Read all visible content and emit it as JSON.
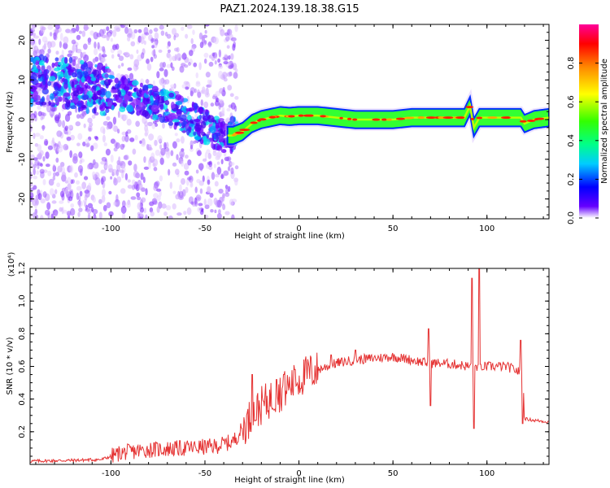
{
  "title": "PAZ1.2024.139.18.38.G15",
  "chart_data": [
    {
      "type": "heatmap",
      "xlabel": "Height of straight line (km)",
      "ylabel": "Frequency (Hz)",
      "xlim": [
        -143,
        133
      ],
      "ylim": [
        -25,
        24
      ],
      "xticks": [
        -100,
        -50,
        0,
        50,
        100
      ],
      "yticks": [
        -20,
        -10,
        0,
        10,
        20
      ],
      "colorbar": {
        "label": "Normalized spectral amplitude",
        "range": [
          0,
          1
        ],
        "ticks": [
          0.0,
          0.2,
          0.4,
          0.6,
          0.8
        ]
      },
      "ridge": {
        "x": [
          -143,
          -120,
          -100,
          -80,
          -70,
          -60,
          -50,
          -40,
          -35,
          -30,
          -25,
          -20,
          -15,
          -10,
          -5,
          0,
          10,
          20,
          30,
          40,
          50,
          60,
          70,
          80,
          88,
          91,
          93,
          96,
          100,
          110,
          115,
          118,
          120,
          125,
          133
        ],
        "y": [
          10,
          9,
          7,
          5,
          3,
          1,
          -2,
          -4,
          -4,
          -3,
          -1,
          0,
          0.5,
          1,
          0.8,
          1,
          1,
          0.5,
          0,
          0,
          0,
          0.5,
          0.5,
          0.5,
          0.5,
          3.5,
          -2,
          0.5,
          0.5,
          0.5,
          0.5,
          0.5,
          -1,
          0,
          0.5
        ]
      }
    },
    {
      "type": "line",
      "xlabel": "Height of straight line (km)",
      "ylabel": "SNR (10 * v/v)",
      "scale_label": "(x10⁴)",
      "xlim": [
        -143,
        133
      ],
      "ylim": [
        0,
        1.2
      ],
      "xticks": [
        -100,
        -50,
        0,
        50,
        100
      ],
      "yticks": [
        0.2,
        0.4,
        0.6,
        0.8,
        1.0,
        1.2
      ],
      "color": "#e53333",
      "series": [
        {
          "values": [
            [
              -143,
              0.02
            ],
            [
              -120,
              0.025
            ],
            [
              -105,
              0.03
            ],
            [
              -95,
              0.07
            ],
            [
              -80,
              0.09
            ],
            [
              -60,
              0.1
            ],
            [
              -45,
              0.11
            ],
            [
              -35,
              0.14
            ],
            [
              -30,
              0.22
            ],
            [
              -25,
              0.3
            ],
            [
              -20,
              0.36
            ],
            [
              -15,
              0.4
            ],
            [
              -10,
              0.44
            ],
            [
              -5,
              0.48
            ],
            [
              0,
              0.52
            ],
            [
              5,
              0.56
            ],
            [
              10,
              0.58
            ],
            [
              15,
              0.6
            ],
            [
              20,
              0.62
            ],
            [
              30,
              0.64
            ],
            [
              40,
              0.65
            ],
            [
              50,
              0.66
            ],
            [
              60,
              0.64
            ],
            [
              68,
              0.62
            ],
            [
              75,
              0.62
            ],
            [
              85,
              0.61
            ],
            [
              90,
              0.6
            ],
            [
              95,
              0.6
            ],
            [
              100,
              0.6
            ],
            [
              110,
              0.6
            ],
            [
              115,
              0.58
            ],
            [
              119,
              0.55
            ],
            [
              120,
              0.28
            ],
            [
              125,
              0.27
            ],
            [
              133,
              0.26
            ]
          ],
          "spikes": [
            [
              -25,
              0.55
            ],
            [
              -12,
              0.52
            ],
            [
              -8,
              0.55
            ],
            [
              -2,
              0.58
            ],
            [
              17,
              0.67
            ],
            [
              30,
              0.7
            ],
            [
              69,
              0.83
            ],
            [
              70,
              0.36
            ],
            [
              92,
              1.14
            ],
            [
              93,
              0.22
            ],
            [
              96,
              1.22
            ],
            [
              98,
              0.58
            ],
            [
              118,
              0.76
            ],
            [
              119,
              0.25
            ]
          ]
        }
      ]
    }
  ]
}
